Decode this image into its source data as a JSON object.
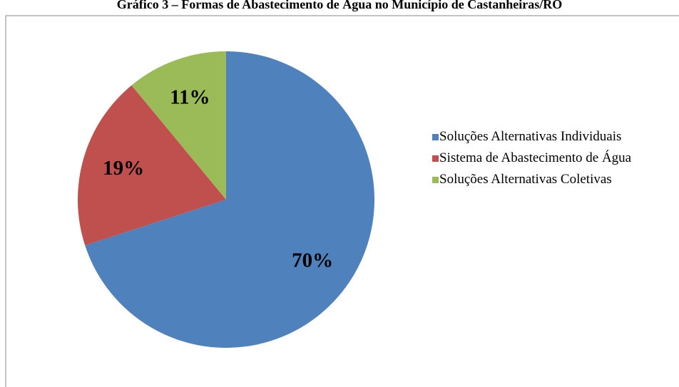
{
  "chart_data": {
    "type": "pie",
    "title": "Gráfico 3 – Formas de Abastecimento de Água no Município de Castanheiras/RO",
    "categories": [
      "Soluções Alternativas Individuais",
      "Sistema de Abastecimento de Água",
      "Soluções Alternativas Coletivas"
    ],
    "values": [
      70,
      19,
      11
    ],
    "value_labels": [
      "70%",
      "19%",
      "11%"
    ],
    "colors": [
      "#4f81bd",
      "#c0504d",
      "#9bbb59"
    ],
    "legend": "right"
  }
}
